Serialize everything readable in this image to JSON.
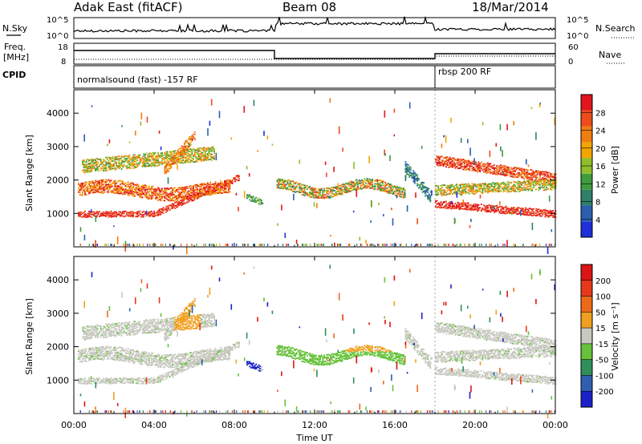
{
  "header": {
    "station": "Adak East (fitACF)",
    "beam": "Beam 08",
    "date": "18/Mar/2014"
  },
  "left_labels": {
    "nsky": "N.Sky",
    "freq": "Freq.",
    "freq_unit": "[MHz]",
    "cpid": "CPID"
  },
  "right_labels": {
    "nsearch": "N.Search",
    "nave": "Nave"
  },
  "noise_ticks": [
    "10^5",
    "10^0"
  ],
  "freq_ticks": [
    "18",
    "8"
  ],
  "nave_ticks": [
    "60",
    "0"
  ],
  "cpid_segments": [
    {
      "label": "normalsound (fast) -157 RF",
      "start_hour": 0
    },
    {
      "label": "rbsp 200 RF",
      "start_hour": 18
    }
  ],
  "chart_data": [
    {
      "type": "heatmap",
      "name": "power-panel",
      "title": "",
      "xlabel": "",
      "ylabel": "Slant Range [km]",
      "xlim": [
        0,
        24
      ],
      "ylim": [
        0,
        4700
      ],
      "y_ticks": [
        1000,
        2000,
        3000,
        4000
      ],
      "colorbar": {
        "label": "Power [dB]",
        "ticks": [
          "4",
          "8",
          "12",
          "16",
          "20",
          "24",
          "28"
        ],
        "colors": [
          "#1f2fd9",
          "#2a5fb0",
          "#2f7f6a",
          "#3e9b3e",
          "#8fbf2a",
          "#f2a500",
          "#f07d10",
          "#ee4c1c",
          "#e2151c"
        ]
      }
    },
    {
      "type": "heatmap",
      "name": "velocity-panel",
      "title": "",
      "xlabel": "Time UT",
      "ylabel": "Slant Range [km]",
      "xlim": [
        0,
        24
      ],
      "ylim": [
        0,
        4700
      ],
      "x_ticks": [
        "00:00",
        "04:00",
        "08:00",
        "12:00",
        "16:00",
        "20:00",
        "00:00"
      ],
      "y_ticks": [
        1000,
        2000,
        3000,
        4000
      ],
      "colorbar": {
        "label": "Velocity [m s⁻¹]",
        "ticks": [
          "200",
          "100",
          "50",
          "15",
          "-15",
          "-50",
          "-100",
          "-200"
        ],
        "colors": [
          "#1a22c8",
          "#2f5fb0",
          "#2f8f5a",
          "#66c23a",
          "#c8c8c0",
          "#f0a020",
          "#ef6a16",
          "#e8381a",
          "#dc1414"
        ]
      }
    }
  ]
}
